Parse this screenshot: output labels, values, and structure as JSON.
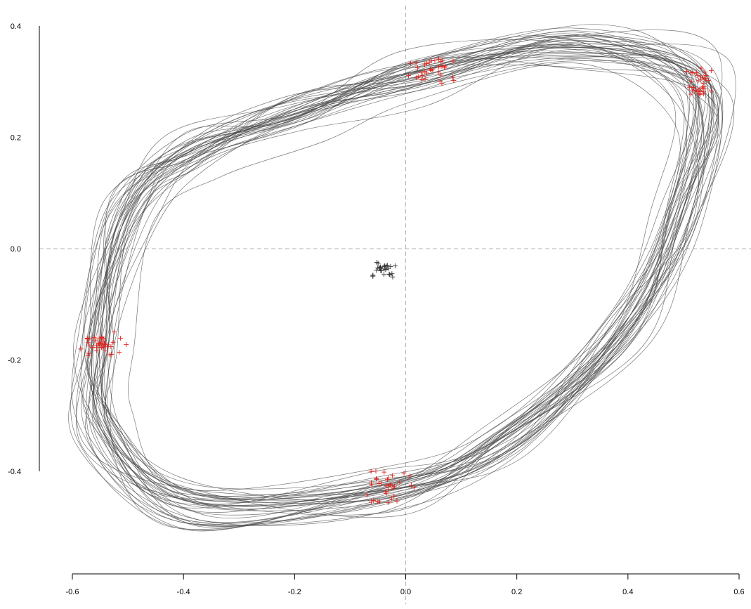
{
  "chart_data": {
    "type": "line",
    "title": "",
    "xlabel": "",
    "ylabel": "",
    "xlim": [
      -0.6,
      0.6
    ],
    "ylim": [
      -0.5,
      0.4
    ],
    "grid": false,
    "x_ticks": [
      {
        "value": -0.6,
        "label": "-0.6"
      },
      {
        "value": -0.4,
        "label": "-0.4"
      },
      {
        "value": -0.2,
        "label": "-0.2"
      },
      {
        "value": 0.0,
        "label": "0.0"
      },
      {
        "value": 0.2,
        "label": "0.2"
      },
      {
        "value": 0.4,
        "label": "0.4"
      },
      {
        "value": 0.6,
        "label": "0.6"
      }
    ],
    "y_ticks": [
      {
        "value": 0.4,
        "label": "0.4"
      },
      {
        "value": 0.2,
        "label": "0.2"
      },
      {
        "value": 0.0,
        "label": "0.0"
      },
      {
        "value": -0.2,
        "label": "-0.2"
      },
      {
        "value": -0.4,
        "label": "-0.4"
      }
    ],
    "reference_lines": {
      "x": 0.0,
      "y": 0.0,
      "style": "dashed",
      "color": "#b4b4b4"
    },
    "trajectory_series": {
      "count": 40,
      "color": "#4a4a4a",
      "keyframes": [
        {
          "x": 0.02,
          "y": 0.31,
          "kind": "cluster"
        },
        {
          "x": 0.3,
          "y": 0.36
        },
        {
          "x": 0.53,
          "y": 0.29,
          "kind": "cluster"
        },
        {
          "x": 0.49,
          "y": 0.05
        },
        {
          "x": 0.38,
          "y": -0.15
        },
        {
          "x": 0.18,
          "y": -0.34
        },
        {
          "x": -0.03,
          "y": -0.43,
          "kind": "cluster"
        },
        {
          "x": -0.38,
          "y": -0.46
        },
        {
          "x": -0.54,
          "y": -0.33
        },
        {
          "x": -0.55,
          "y": -0.16,
          "kind": "cluster"
        },
        {
          "x": -0.5,
          "y": 0.06
        },
        {
          "x": -0.38,
          "y": 0.17
        },
        {
          "x": -0.2,
          "y": 0.24
        }
      ]
    },
    "marker_clusters": [
      {
        "color": "#e0201b",
        "center": [
          0.05,
          0.32
        ],
        "spread": [
          0.04,
          0.025
        ],
        "count": 35
      },
      {
        "color": "#e0201b",
        "center": [
          0.53,
          0.295
        ],
        "spread": [
          0.02,
          0.025
        ],
        "count": 35
      },
      {
        "color": "#e0201b",
        "center": [
          -0.03,
          -0.43
        ],
        "spread": [
          0.04,
          0.03
        ],
        "count": 35
      },
      {
        "color": "#e0201b",
        "center": [
          -0.55,
          -0.17
        ],
        "spread": [
          0.03,
          0.02
        ],
        "count": 40
      },
      {
        "color": "#333333",
        "center": [
          -0.04,
          -0.035
        ],
        "spread": [
          0.018,
          0.012
        ],
        "count": 30
      }
    ]
  }
}
